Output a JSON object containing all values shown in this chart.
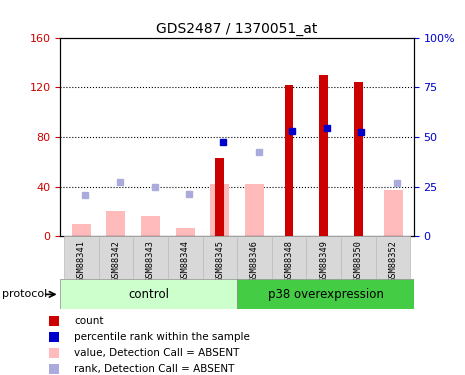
{
  "title": "GDS2487 / 1370051_at",
  "samples": [
    "GSM88341",
    "GSM88342",
    "GSM88343",
    "GSM88344",
    "GSM88345",
    "GSM88346",
    "GSM88348",
    "GSM88349",
    "GSM88350",
    "GSM88352"
  ],
  "count_values": [
    null,
    null,
    null,
    null,
    63,
    null,
    122,
    130,
    124,
    null
  ],
  "percentile_values": [
    null,
    null,
    null,
    null,
    76,
    null,
    85,
    87,
    84,
    null
  ],
  "absent_value_values": [
    10,
    20,
    16,
    7,
    42,
    42,
    null,
    null,
    null,
    37
  ],
  "absent_rank_values": [
    33,
    44,
    40,
    34,
    null,
    68,
    null,
    null,
    null,
    43
  ],
  "ylim_left": [
    0,
    160
  ],
  "ylim_right": [
    0,
    100
  ],
  "yticks_left": [
    0,
    40,
    80,
    120,
    160
  ],
  "ytick_labels_left": [
    "0",
    "40",
    "80",
    "120",
    "160"
  ],
  "yticks_right": [
    0,
    25,
    50,
    75,
    100
  ],
  "ytick_labels_right": [
    "0",
    "25",
    "50",
    "75",
    "100%"
  ],
  "left_axis_color": "#cc0000",
  "right_axis_color": "#0000cc",
  "count_color": "#cc0000",
  "percentile_color": "#0000cc",
  "absent_value_color": "#ffbbbb",
  "absent_rank_color": "#aaaadd",
  "count_bar_width": 0.25,
  "absent_bar_width": 0.55,
  "ctrl_group_color": "#ccffcc",
  "p38_group_color": "#44cc44",
  "ctrl_label": "control",
  "p38_label": "p38 overexpression",
  "protocol_label": "protocol",
  "group_split": 4.5,
  "legend": [
    {
      "color": "#cc0000",
      "label": "count"
    },
    {
      "color": "#0000cc",
      "label": "percentile rank within the sample"
    },
    {
      "color": "#ffbbbb",
      "label": "value, Detection Call = ABSENT"
    },
    {
      "color": "#aaaadd",
      "label": "rank, Detection Call = ABSENT"
    }
  ]
}
